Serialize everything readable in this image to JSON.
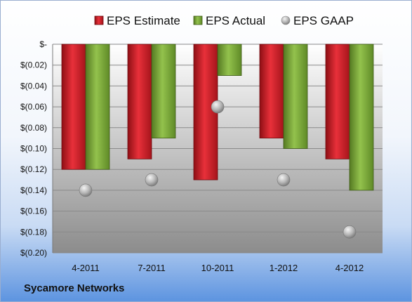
{
  "footer": {
    "company": "Sycamore Networks"
  },
  "chart_data": {
    "type": "bar",
    "categories": [
      "4-2011",
      "7-2011",
      "10-2011",
      "1-2012",
      "4-2012"
    ],
    "series": [
      {
        "name": "EPS Estimate",
        "kind": "bar",
        "color": "#d9232b",
        "values": [
          -0.12,
          -0.11,
          -0.13,
          -0.09,
          -0.11
        ]
      },
      {
        "name": "EPS Actual",
        "kind": "bar",
        "color": "#7eab3c",
        "values": [
          -0.12,
          -0.09,
          -0.03,
          -0.1,
          -0.14
        ]
      },
      {
        "name": "EPS GAAP",
        "kind": "scatter",
        "color": "#a8a8a8",
        "values": [
          -0.14,
          -0.13,
          -0.06,
          -0.13,
          -0.18
        ]
      }
    ],
    "ylim": [
      -0.2,
      0
    ],
    "yticks": [
      0,
      -0.02,
      -0.04,
      -0.06,
      -0.08,
      -0.1,
      -0.12,
      -0.14,
      -0.16,
      -0.18,
      -0.2
    ],
    "ytick_labels": [
      "$-",
      "$(0.02)",
      "$(0.04)",
      "$(0.06)",
      "$(0.08)",
      "$(0.10)",
      "$(0.12)",
      "$(0.14)",
      "$(0.16)",
      "$(0.18)",
      "$(0.20)"
    ],
    "legend_position": "top",
    "grid": true
  }
}
